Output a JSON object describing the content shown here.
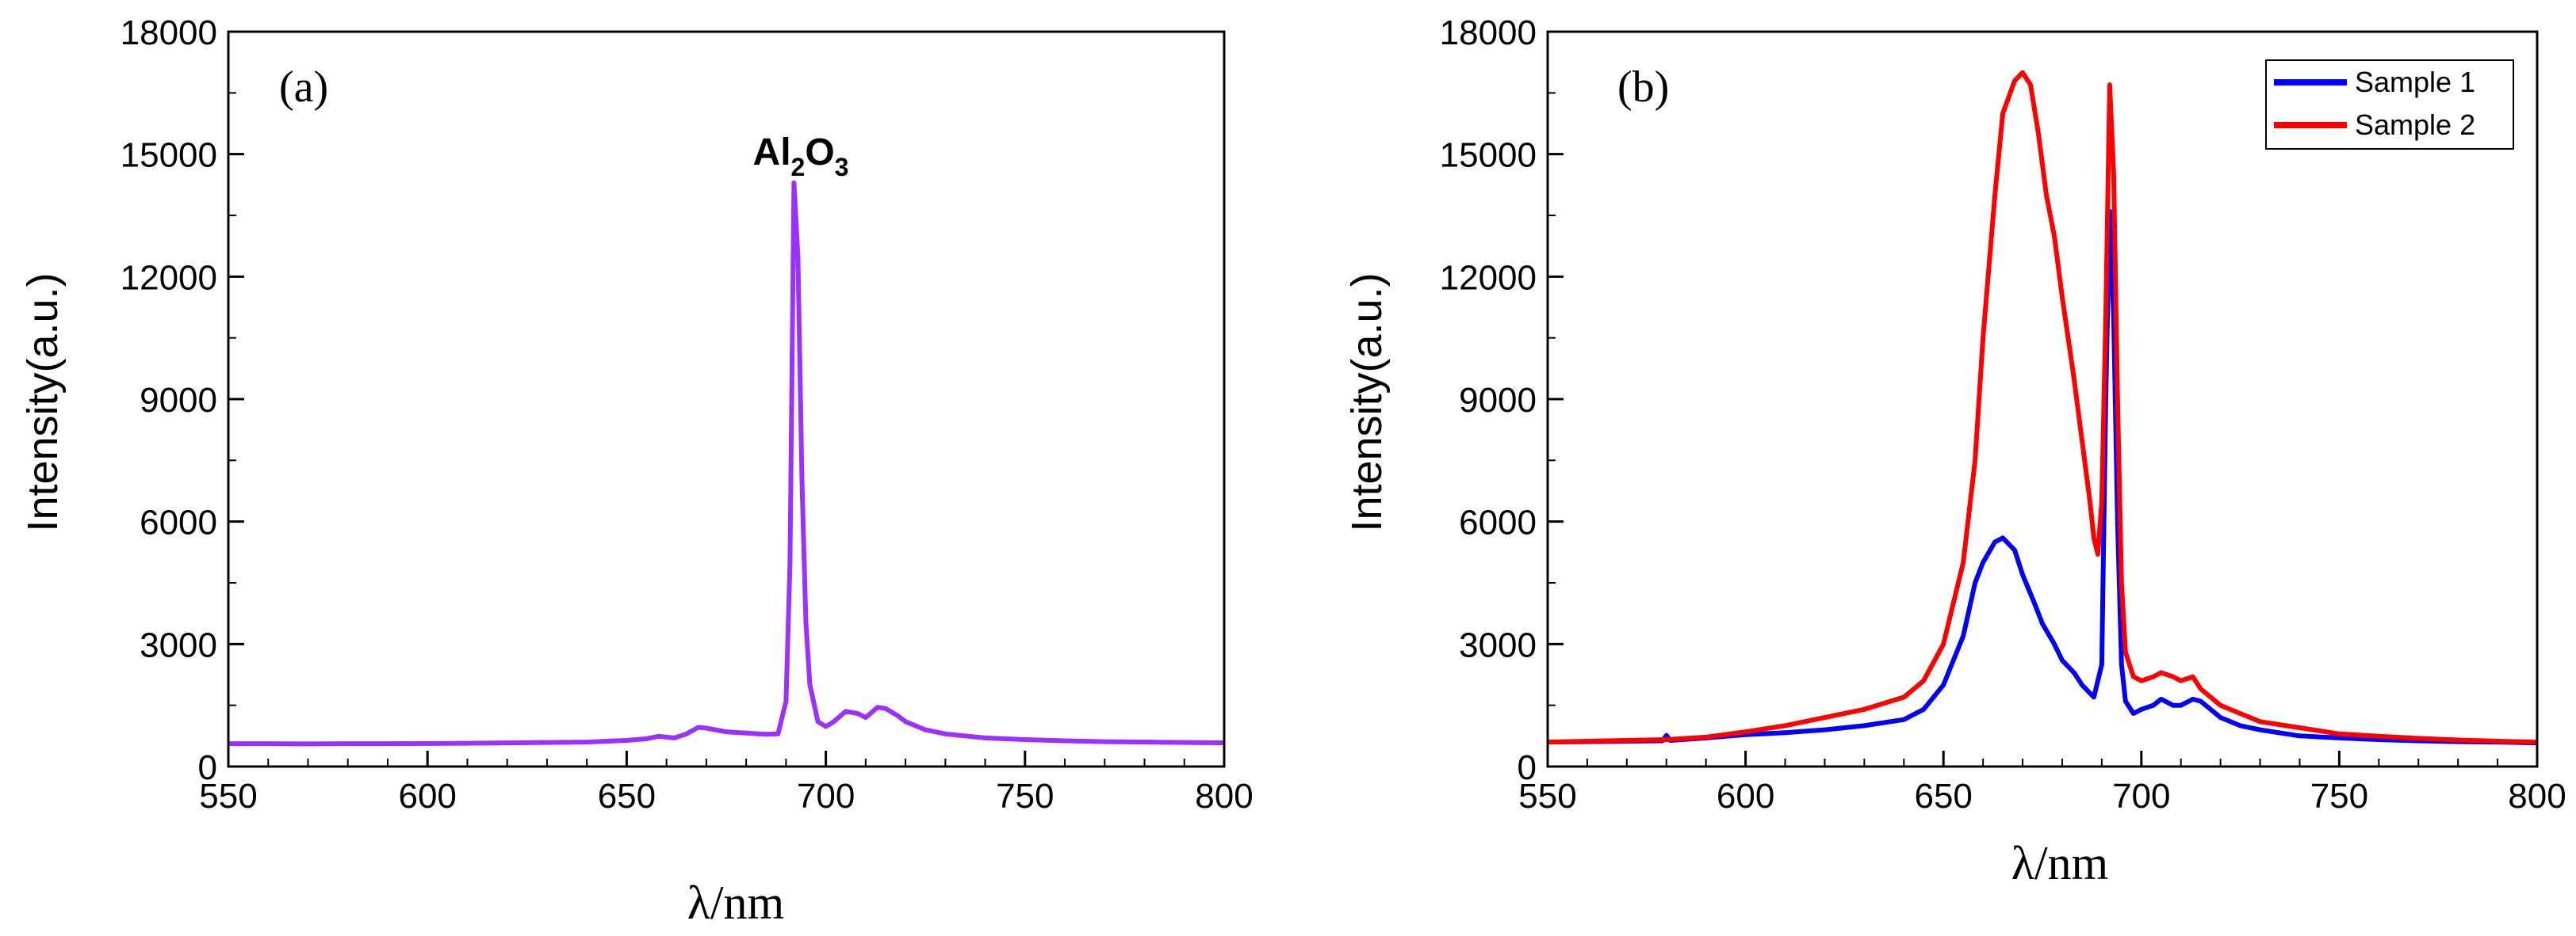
{
  "chart_data": [
    {
      "panel": "(a)",
      "type": "line",
      "xlabel": "λ/nm",
      "ylabel": "Intensity(a.u.)",
      "xlim": [
        550,
        800
      ],
      "ylim": [
        0,
        18000
      ],
      "x_ticks": [
        550,
        600,
        650,
        700,
        750,
        800
      ],
      "y_ticks": [
        0,
        3000,
        6000,
        9000,
        12000,
        15000,
        18000
      ],
      "annotation": {
        "main": "Al",
        "sub1": "2",
        "mid": "O",
        "sub2": "3",
        "x": 692,
        "y": 14800
      },
      "series": [
        {
          "name": "Al2O3",
          "color": "#9B30FF",
          "x": [
            550,
            560,
            570,
            580,
            590,
            600,
            610,
            620,
            630,
            640,
            650,
            655,
            658,
            660,
            662,
            665,
            668,
            670,
            675,
            680,
            685,
            688,
            690,
            691,
            692,
            693,
            694,
            695,
            696,
            698,
            700,
            702,
            705,
            708,
            710,
            713,
            715,
            718,
            720,
            725,
            730,
            740,
            750,
            760,
            770,
            780,
            790,
            800
          ],
          "y": [
            560,
            560,
            555,
            560,
            560,
            565,
            570,
            580,
            590,
            600,
            640,
            680,
            740,
            720,
            700,
            800,
            960,
            940,
            850,
            820,
            790,
            800,
            1600,
            5000,
            14300,
            12500,
            7000,
            3500,
            2000,
            1100,
            980,
            1100,
            1350,
            1300,
            1200,
            1450,
            1420,
            1250,
            1100,
            900,
            800,
            700,
            660,
            630,
            610,
            600,
            590,
            580
          ]
        }
      ]
    },
    {
      "panel": "(b)",
      "type": "line",
      "xlabel": "λ/nm",
      "ylabel": "Intensity(a.u.)",
      "xlim": [
        550,
        800
      ],
      "ylim": [
        0,
        18000
      ],
      "x_ticks": [
        550,
        600,
        650,
        700,
        750,
        800
      ],
      "y_ticks": [
        0,
        3000,
        6000,
        9000,
        12000,
        15000,
        18000
      ],
      "legend": [
        "Sample 1",
        "Sample 2"
      ],
      "series": [
        {
          "name": "Sample 1",
          "color": "#0000FF",
          "x": [
            550,
            560,
            570,
            579,
            580,
            581,
            590,
            600,
            610,
            620,
            630,
            640,
            645,
            650,
            655,
            658,
            660,
            663,
            665,
            668,
            670,
            673,
            675,
            678,
            680,
            683,
            685,
            688,
            690,
            691,
            692,
            693,
            694,
            695,
            696,
            698,
            700,
            703,
            705,
            708,
            710,
            713,
            715,
            720,
            725,
            730,
            740,
            750,
            760,
            770,
            780,
            790,
            800
          ],
          "y": [
            600,
            610,
            620,
            630,
            760,
            640,
            700,
            780,
            830,
            900,
            1000,
            1150,
            1400,
            2000,
            3200,
            4500,
            5000,
            5500,
            5600,
            5300,
            4700,
            4000,
            3500,
            3000,
            2600,
            2300,
            2000,
            1700,
            2500,
            9000,
            13600,
            11000,
            6000,
            2500,
            1600,
            1300,
            1400,
            1500,
            1650,
            1500,
            1500,
            1650,
            1600,
            1200,
            1000,
            900,
            750,
            700,
            660,
            630,
            610,
            600,
            580
          ]
        },
        {
          "name": "Sample 2",
          "color": "#FF0000",
          "x": [
            550,
            560,
            570,
            580,
            590,
            600,
            610,
            620,
            630,
            640,
            645,
            650,
            655,
            658,
            660,
            663,
            665,
            668,
            670,
            672,
            674,
            676,
            678,
            680,
            683,
            685,
            687,
            688,
            689,
            690,
            691,
            692,
            693,
            694,
            695,
            696,
            698,
            700,
            703,
            705,
            708,
            710,
            713,
            715,
            720,
            725,
            730,
            740,
            750,
            760,
            770,
            780,
            790,
            800
          ],
          "y": [
            600,
            620,
            640,
            660,
            720,
            850,
            1000,
            1200,
            1400,
            1700,
            2100,
            3000,
            5000,
            7500,
            10500,
            14000,
            16000,
            16800,
            17000,
            16700,
            15500,
            14000,
            13000,
            11500,
            9500,
            8000,
            6500,
            5600,
            5200,
            6500,
            11000,
            16700,
            14500,
            9000,
            4500,
            2800,
            2200,
            2100,
            2200,
            2300,
            2200,
            2100,
            2200,
            1900,
            1500,
            1300,
            1100,
            950,
            800,
            740,
            690,
            650,
            620,
            600
          ]
        }
      ]
    }
  ]
}
